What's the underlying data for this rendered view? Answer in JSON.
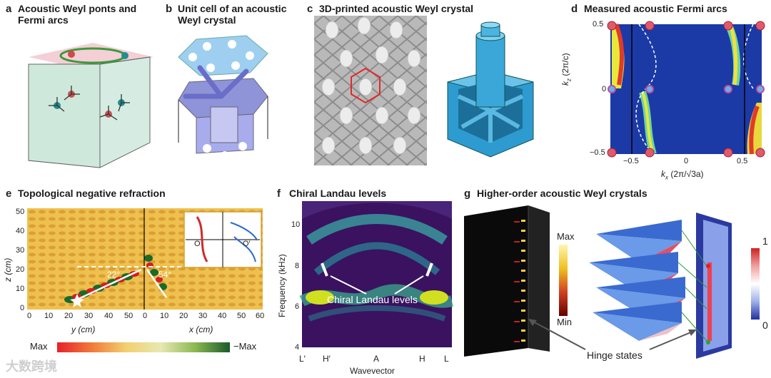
{
  "panels": {
    "a": {
      "letter": "a",
      "title1": "Acoustic Weyl ponts and",
      "title2": "Fermi arcs"
    },
    "b": {
      "letter": "b",
      "title1": "Unit cell of an acoustic",
      "title2": "Weyl crystal"
    },
    "c": {
      "letter": "c",
      "title1": "3D-printed acoustic Weyl crystal"
    },
    "d": {
      "letter": "d",
      "title1": "Measured acoustic Fermi arcs",
      "xlabel": "k",
      "xlabel_sub": "x",
      "xlabel_unit": "(2π/√3a)",
      "ylabel": "k",
      "ylabel_sub": "z",
      "ylabel_unit": "(2π/c)",
      "xticks": [
        "−0.5",
        "0",
        "0.5"
      ],
      "yticks": [
        "0.5",
        "0",
        "−0.5"
      ]
    },
    "e": {
      "letter": "e",
      "title1": "Topological negative refraction",
      "ylabel": "z (cm)",
      "xlabel_left": "y (cm)",
      "xlabel_right": "x (cm)",
      "yticks": [
        "50",
        "40",
        "30",
        "20",
        "10",
        "0"
      ],
      "xticks_left": [
        "0",
        "10",
        "20",
        "30",
        "40",
        "50"
      ],
      "xticks_right": [
        "0",
        "10",
        "20",
        "30",
        "40",
        "50",
        "60"
      ],
      "angle1": "22°",
      "angle2": "54°",
      "inset_o": "O",
      "inset_o2": "O′",
      "cb_max": "Max",
      "cb_min": "−Max"
    },
    "f": {
      "letter": "f",
      "title1": "Chiral Landau levels",
      "ylabel": "Frequency (kHz)",
      "xlabel": "Wavevector",
      "yticks": [
        "10",
        "8",
        "6",
        "4"
      ],
      "xticks": [
        "L′",
        "H′",
        "A",
        "H",
        "L"
      ],
      "annotation": "Chiral Landau levels"
    },
    "g": {
      "letter": "g",
      "title1": "Higher-order acoustic Weyl crystals",
      "cb1_max": "Max",
      "cb1_min": "Min",
      "cb2_max": "1",
      "cb2_min": "0",
      "annotation": "Hinge states"
    }
  },
  "watermark": "大数跨境",
  "colors": {
    "pink": "#e8446e",
    "blue_map": "#2c3aa8",
    "teal": "#1a9a9a"
  }
}
